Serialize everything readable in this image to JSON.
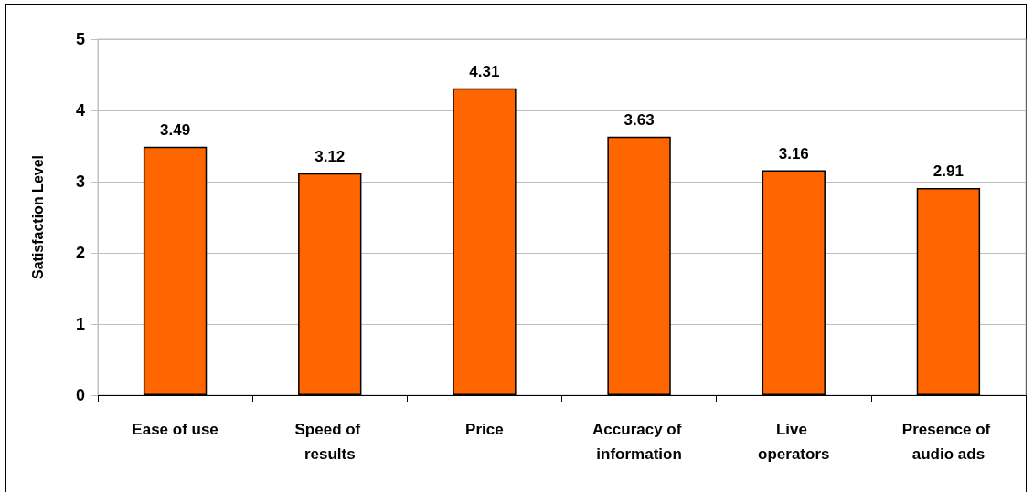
{
  "chart_data": {
    "type": "bar",
    "ylabel": "Satisfaction Level",
    "categories": [
      "Ease of use",
      "Speed of results",
      "Price",
      "Accuracy of information",
      "Live operators",
      "Presence of audio ads"
    ],
    "values": [
      3.49,
      3.12,
      4.31,
      3.63,
      3.16,
      2.91
    ],
    "color": "#ff6600",
    "ylim": [
      0,
      5
    ],
    "yticks": [
      0,
      1,
      2,
      3,
      4,
      5
    ],
    "grid": "y",
    "data_labels": true
  }
}
